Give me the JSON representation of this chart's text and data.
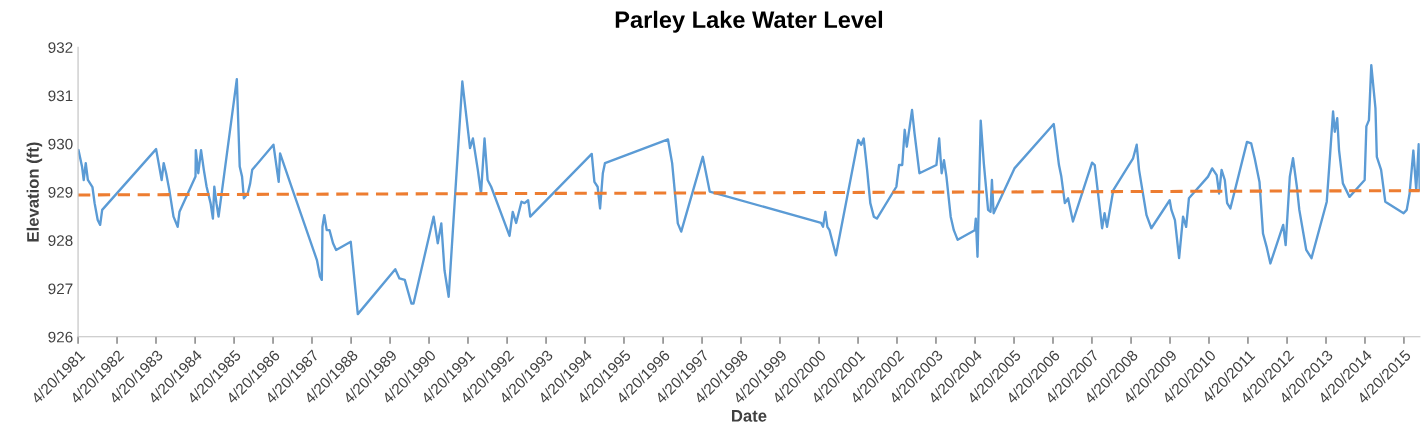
{
  "chart_data": {
    "type": "line",
    "title": "Parley Lake Water Level",
    "xlabel": "Date",
    "ylabel": "Elevation (ft)",
    "xlim": [
      "1981-04-20",
      "2015-09-16"
    ],
    "xticks": [
      {
        "value": "1981-04-20",
        "label": "4/20/1981"
      },
      {
        "value": "1982-04-20",
        "label": "4/20/1982"
      },
      {
        "value": "1983-04-20",
        "label": "4/20/1983"
      },
      {
        "value": "1984-04-20",
        "label": "4/20/1984"
      },
      {
        "value": "1985-04-20",
        "label": "4/20/1985"
      },
      {
        "value": "1986-04-20",
        "label": "4/20/1986"
      },
      {
        "value": "1987-04-20",
        "label": "4/20/1987"
      },
      {
        "value": "1988-04-20",
        "label": "4/20/1988"
      },
      {
        "value": "1989-04-20",
        "label": "4/20/1989"
      },
      {
        "value": "1990-04-20",
        "label": "4/20/1990"
      },
      {
        "value": "1991-04-20",
        "label": "4/20/1991"
      },
      {
        "value": "1992-04-20",
        "label": "4/20/1992"
      },
      {
        "value": "1993-04-20",
        "label": "4/20/1993"
      },
      {
        "value": "1994-04-20",
        "label": "4/20/1994"
      },
      {
        "value": "1995-04-20",
        "label": "4/20/1995"
      },
      {
        "value": "1996-04-20",
        "label": "4/20/1996"
      },
      {
        "value": "1997-04-20",
        "label": "4/20/1997"
      },
      {
        "value": "1998-04-20",
        "label": "4/20/1998"
      },
      {
        "value": "1999-04-20",
        "label": "4/20/1999"
      },
      {
        "value": "2000-04-20",
        "label": "4/20/2000"
      },
      {
        "value": "2001-04-20",
        "label": "4/20/2001"
      },
      {
        "value": "2002-04-20",
        "label": "4/20/2002"
      },
      {
        "value": "2003-04-20",
        "label": "4/20/2003"
      },
      {
        "value": "2004-04-20",
        "label": "4/20/2004"
      },
      {
        "value": "2005-04-20",
        "label": "4/20/2005"
      },
      {
        "value": "2006-04-20",
        "label": "4/20/2006"
      },
      {
        "value": "2007-04-20",
        "label": "4/20/2007"
      },
      {
        "value": "2008-04-20",
        "label": "4/20/2008"
      },
      {
        "value": "2009-04-20",
        "label": "4/20/2009"
      },
      {
        "value": "2010-04-20",
        "label": "4/20/2010"
      },
      {
        "value": "2011-04-20",
        "label": "4/20/2011"
      },
      {
        "value": "2012-04-20",
        "label": "4/20/2012"
      },
      {
        "value": "2013-04-20",
        "label": "4/20/2013"
      },
      {
        "value": "2014-04-20",
        "label": "4/20/2014"
      },
      {
        "value": "2015-04-20",
        "label": "4/20/2015"
      }
    ],
    "ylim": [
      926,
      932
    ],
    "yticks": [
      926,
      927,
      928,
      929,
      930,
      931,
      932
    ],
    "grid": false,
    "series": [
      {
        "color": "#5b9bd5",
        "line_style": "solid",
        "x": [
          "1981-04-24",
          "1981-05-27",
          "1981-06-12",
          "1981-07-01",
          "1981-07-21",
          "1981-09-02",
          "1981-09-22",
          "1981-10-21",
          "1981-11-13",
          "1981-12-02",
          "1983-04-21",
          "1983-06-12",
          "1983-07-01",
          "1983-07-24",
          "1983-08-23",
          "1983-10-01",
          "1983-11-09",
          "1983-11-26",
          "1984-04-24",
          "1984-04-27",
          "1984-05-20",
          "1984-06-15",
          "1984-07-11",
          "1984-08-06",
          "1984-09-12",
          "1984-10-04",
          "1984-10-17",
          "1984-11-06",
          "1984-11-26",
          "1985-05-16",
          "1985-06-12",
          "1985-07-04",
          "1985-07-21",
          "1985-08-26",
          "1985-09-18",
          "1985-10-07",
          "1986-04-24",
          "1986-06-12",
          "1986-06-25",
          "1986-10-21",
          "1987-06-05",
          "1987-07-04",
          "1987-07-21",
          "1987-07-27",
          "1987-08-13",
          "1987-09-05",
          "1987-10-01",
          "1987-11-03",
          "1987-12-02",
          "1988-04-17",
          "1988-06-22",
          "1989-06-08",
          "1989-07-17",
          "1989-09-05",
          "1989-11-06",
          "1989-11-26",
          "1990-06-02",
          "1990-07-11",
          "1990-08-13",
          "1990-09-12",
          "1990-10-21",
          "1991-02-26",
          "1991-05-09",
          "1991-06-05",
          "1991-07-21",
          "1991-08-20",
          "1991-09-22",
          "1991-10-21",
          "1991-11-23",
          "1992-05-13",
          "1992-06-12",
          "1992-07-14",
          "1992-09-02",
          "1992-10-01",
          "1992-11-03",
          "1992-11-23",
          "1994-06-22",
          "1994-07-17",
          "1994-08-16",
          "1994-09-08",
          "1994-10-04",
          "1994-10-24",
          "1996-06-05",
          "1996-07-14",
          "1996-09-05",
          "1996-10-07",
          "1997-04-27",
          "1997-07-01",
          "2000-05-09",
          "2000-05-27",
          "2000-06-18",
          "2000-07-07",
          "2000-07-27",
          "2000-09-25",
          "2001-04-21",
          "2001-05-20",
          "2001-06-12",
          "2001-07-14",
          "2001-08-13",
          "2001-09-15",
          "2001-10-14",
          "2002-04-14",
          "2002-05-09",
          "2002-06-08",
          "2002-07-01",
          "2002-07-21",
          "2002-09-08",
          "2002-10-01",
          "2002-11-16",
          "2003-04-24",
          "2003-05-20",
          "2003-06-12",
          "2003-07-04",
          "2003-07-27",
          "2003-09-05",
          "2003-10-04",
          "2003-11-09",
          "2004-04-17",
          "2004-04-27",
          "2004-05-13",
          "2004-06-12",
          "2004-07-11",
          "2004-08-20",
          "2004-09-12",
          "2004-09-25",
          "2004-10-11",
          "2005-04-24",
          "2006-04-27",
          "2006-06-15",
          "2006-07-07",
          "2006-08-09",
          "2006-09-08",
          "2006-10-24",
          "2007-04-21",
          "2007-05-16",
          "2007-07-24",
          "2007-08-16",
          "2007-09-08",
          "2007-11-06",
          "2008-05-09",
          "2008-06-12",
          "2008-07-04",
          "2008-09-12",
          "2008-10-27",
          "2009-04-17",
          "2009-05-03",
          "2009-06-05",
          "2009-07-14",
          "2009-08-20",
          "2009-09-18",
          "2009-10-14",
          "2010-04-11",
          "2010-05-20",
          "2010-07-01",
          "2010-07-24",
          "2010-08-16",
          "2010-09-15",
          "2010-10-07",
          "2010-11-06",
          "2011-04-11",
          "2011-05-20",
          "2011-06-22",
          "2011-08-06",
          "2011-09-08",
          "2011-10-11",
          "2011-11-16",
          "2012-03-15",
          "2012-04-07",
          "2012-05-16",
          "2012-06-15",
          "2012-07-21",
          "2012-08-13",
          "2012-10-17",
          "2012-12-05",
          "2013-04-27",
          "2013-05-29",
          "2013-06-25",
          "2013-07-11",
          "2013-08-03",
          "2013-08-20",
          "2013-09-25",
          "2013-11-26",
          "2014-04-17",
          "2014-05-03",
          "2014-05-27",
          "2014-06-18",
          "2014-07-27",
          "2014-08-09",
          "2014-09-18",
          "2014-10-27",
          "2015-03-25",
          "2015-04-17",
          "2015-05-16",
          "2015-06-12",
          "2015-07-17",
          "2015-08-13",
          "2015-09-05",
          "2015-09-15"
        ],
        "values": [
          929.87,
          929.53,
          929.25,
          929.6,
          929.25,
          929.1,
          928.77,
          928.42,
          928.32,
          928.63,
          929.89,
          929.25,
          929.6,
          929.39,
          929.04,
          928.49,
          928.28,
          928.59,
          929.32,
          929.87,
          929.39,
          929.87,
          929.46,
          929.11,
          928.77,
          928.45,
          929.11,
          928.77,
          928.49,
          931.34,
          929.53,
          929.32,
          928.87,
          928.97,
          929.18,
          929.46,
          929.98,
          929.21,
          929.8,
          929.04,
          927.59,
          927.25,
          927.18,
          928.28,
          928.52,
          928.21,
          928.21,
          927.94,
          927.8,
          927.97,
          926.47,
          927.4,
          927.21,
          927.18,
          926.69,
          926.69,
          928.49,
          927.94,
          928.35,
          927.38,
          926.83,
          931.29,
          929.91,
          930.11,
          929.46,
          928.97,
          930.11,
          929.25,
          929.11,
          928.09,
          928.59,
          928.36,
          928.8,
          928.77,
          928.83,
          928.49,
          929.79,
          929.21,
          929.11,
          928.66,
          929.39,
          929.6,
          930.09,
          929.6,
          928.35,
          928.18,
          929.73,
          929.01,
          928.36,
          928.28,
          928.59,
          928.28,
          928.21,
          927.69,
          930.08,
          929.98,
          930.11,
          929.46,
          928.77,
          928.49,
          928.45,
          929.11,
          929.56,
          929.56,
          930.29,
          929.94,
          930.7,
          930.22,
          929.39,
          929.56,
          930.11,
          929.39,
          929.66,
          929.32,
          928.49,
          928.21,
          928.01,
          928.21,
          928.45,
          927.66,
          930.48,
          929.6,
          928.63,
          928.59,
          929.25,
          928.56,
          929.49,
          930.41,
          929.56,
          929.32,
          928.77,
          928.87,
          928.39,
          929.61,
          929.56,
          928.25,
          928.56,
          928.28,
          929.04,
          929.7,
          929.98,
          929.46,
          928.52,
          928.25,
          928.83,
          928.63,
          928.42,
          927.63,
          928.49,
          928.28,
          928.87,
          929.32,
          929.49,
          929.35,
          928.97,
          929.46,
          929.25,
          928.77,
          928.66,
          930.04,
          930.01,
          929.7,
          929.21,
          928.14,
          927.87,
          927.52,
          928.32,
          927.9,
          929.32,
          929.7,
          929.11,
          928.63,
          927.8,
          927.63,
          928.8,
          929.8,
          930.67,
          930.25,
          930.53,
          929.87,
          929.18,
          928.9,
          929.25,
          930.36,
          930.49,
          931.63,
          930.74,
          929.73,
          929.46,
          928.8,
          928.59,
          928.56,
          928.63,
          928.97,
          929.86,
          929.04,
          929.99,
          929.04
        ]
      },
      {
        "type": "line",
        "color": "#ed7d31",
        "line_style": "dashed",
        "x": [
          "1981-04-20",
          "2015-09-16"
        ],
        "values": [
          928.94,
          929.03
        ]
      }
    ]
  }
}
